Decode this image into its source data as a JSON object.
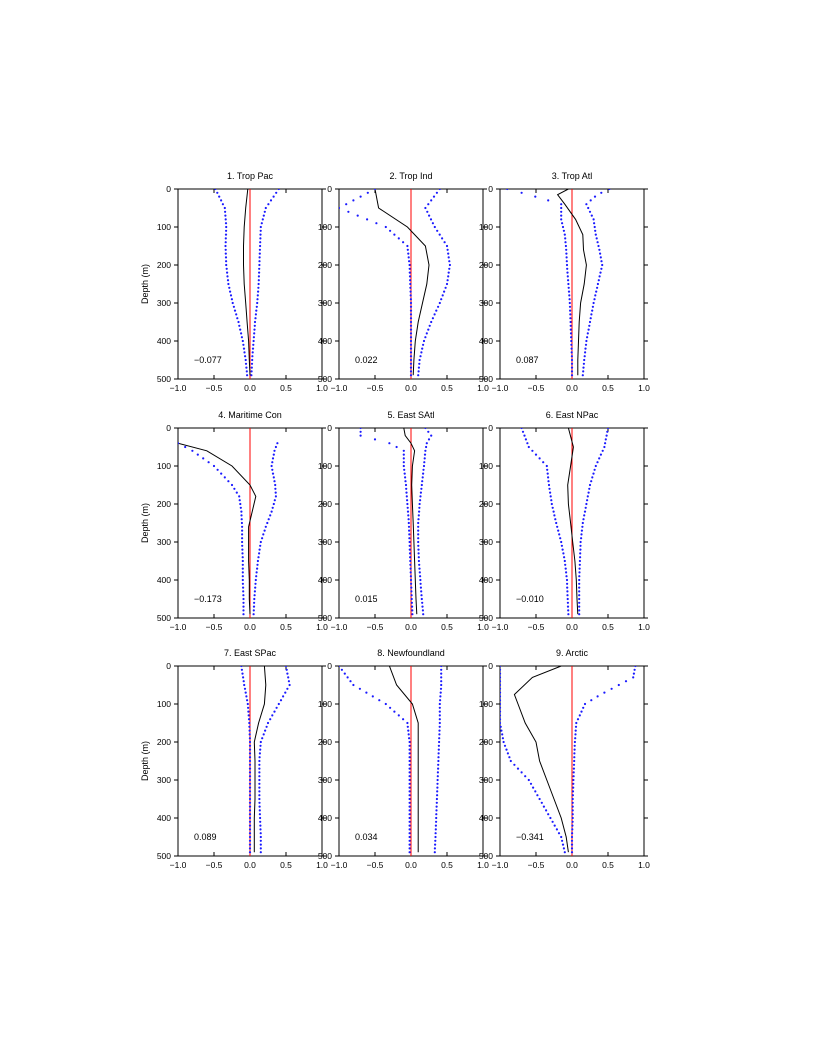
{
  "colors": {
    "mean": "#000000",
    "spread": "#1a1aff",
    "zero": "#ff0000",
    "axis": "#000000"
  },
  "axes": {
    "xlim": [
      -1.0,
      1.0
    ],
    "ylim": [
      0,
      500
    ],
    "xticks": [
      -1.0,
      -0.5,
      0.0,
      0.5,
      1.0
    ],
    "xtick_labels": [
      "−1.0",
      "−0.5",
      "0.0",
      "0.5",
      "1.0"
    ],
    "yticks": [
      0,
      100,
      200,
      300,
      400,
      500
    ],
    "ytick_labels": [
      "0",
      "100",
      "200",
      "300",
      "400",
      "500"
    ],
    "ylabel": "Depth (m)"
  },
  "chart_data": [
    {
      "type": "line",
      "title": "1. Trop Pac",
      "annotation": "−0.077",
      "depth": [
        0,
        50,
        100,
        150,
        200,
        250,
        300,
        350,
        400,
        450,
        490
      ],
      "series": [
        {
          "name": "mean",
          "style": "solid",
          "values": [
            -0.03,
            -0.06,
            -0.08,
            -0.09,
            -0.09,
            -0.08,
            -0.06,
            -0.04,
            -0.02,
            -0.01,
            0.0
          ]
        },
        {
          "name": "upper",
          "style": "dotted",
          "values": [
            0.4,
            0.22,
            0.15,
            0.14,
            0.13,
            0.12,
            0.1,
            0.07,
            0.05,
            0.03,
            0.02
          ]
        },
        {
          "name": "lower",
          "style": "dotted",
          "values": [
            -0.48,
            -0.35,
            -0.33,
            -0.34,
            -0.33,
            -0.3,
            -0.24,
            -0.16,
            -0.1,
            -0.06,
            -0.04
          ]
        }
      ]
    },
    {
      "type": "line",
      "title": "2. Trop Ind",
      "annotation": "0.022",
      "depth": [
        0,
        50,
        100,
        150,
        200,
        250,
        300,
        350,
        400,
        450,
        490
      ],
      "series": [
        {
          "name": "mean",
          "style": "solid",
          "values": [
            -0.5,
            -0.45,
            -0.05,
            0.2,
            0.25,
            0.22,
            0.16,
            0.1,
            0.06,
            0.04,
            0.03
          ]
        },
        {
          "name": "upper",
          "style": "dotted",
          "values": [
            0.4,
            0.2,
            0.33,
            0.5,
            0.54,
            0.5,
            0.4,
            0.28,
            0.18,
            0.12,
            0.1
          ]
        },
        {
          "name": "lower",
          "style": "dotted",
          "values": [
            -0.5,
            -1.0,
            -0.35,
            -0.05,
            -0.02,
            -0.01,
            0.0,
            0.0,
            0.0,
            0.0,
            0.0
          ]
        }
      ]
    },
    {
      "type": "line",
      "title": "3. Trop Atl",
      "annotation": "0.087",
      "depth": [
        0,
        15,
        40,
        80,
        120,
        160,
        200,
        250,
        300,
        350,
        400,
        450,
        490
      ],
      "series": [
        {
          "name": "mean",
          "style": "solid",
          "values": [
            -0.05,
            -0.2,
            -0.1,
            0.05,
            0.15,
            0.16,
            0.2,
            0.17,
            0.12,
            0.1,
            0.09,
            0.08,
            0.08
          ]
        },
        {
          "name": "upper",
          "style": "dotted",
          "values": [
            0.52,
            0.35,
            0.2,
            0.3,
            0.33,
            0.38,
            0.42,
            0.36,
            0.3,
            0.25,
            0.2,
            0.17,
            0.15
          ]
        },
        {
          "name": "lower",
          "style": "dotted",
          "values": [
            -0.9,
            -0.6,
            -0.15,
            -0.15,
            -0.1,
            -0.08,
            -0.07,
            -0.05,
            -0.03,
            -0.02,
            -0.01,
            0.0,
            0.0
          ]
        }
      ]
    },
    {
      "type": "line",
      "title": "4. Maritime Con",
      "annotation": "−0.173",
      "depth": [
        40,
        60,
        100,
        150,
        180,
        220,
        260,
        300,
        350,
        400,
        450,
        490
      ],
      "series": [
        {
          "name": "mean",
          "style": "solid",
          "values": [
            -1.0,
            -0.6,
            -0.25,
            0.0,
            0.08,
            0.03,
            -0.02,
            -0.02,
            -0.02,
            -0.01,
            -0.01,
            0.0
          ]
        },
        {
          "name": "upper",
          "style": "dotted",
          "values": [
            0.38,
            0.34,
            0.3,
            0.35,
            0.36,
            0.3,
            0.22,
            0.15,
            0.11,
            0.08,
            0.06,
            0.05
          ]
        },
        {
          "name": "lower",
          "style": "dotted",
          "values": [
            -1.0,
            -0.8,
            -0.5,
            -0.25,
            -0.15,
            -0.12,
            -0.11,
            -0.11,
            -0.1,
            -0.1,
            -0.09,
            -0.09
          ]
        }
      ]
    },
    {
      "type": "line",
      "title": "5. East SAtl",
      "annotation": "0.015",
      "depth": [
        0,
        20,
        40,
        60,
        100,
        150,
        200,
        250,
        300,
        350,
        400,
        450,
        490
      ],
      "series": [
        {
          "name": "mean",
          "style": "solid",
          "values": [
            -0.1,
            -0.08,
            0.0,
            0.05,
            0.02,
            0.01,
            0.02,
            0.03,
            0.04,
            0.05,
            0.06,
            0.07,
            0.08
          ]
        },
        {
          "name": "upper",
          "style": "dotted",
          "values": [
            0.2,
            0.28,
            0.22,
            0.2,
            0.18,
            0.15,
            0.12,
            0.1,
            0.1,
            0.11,
            0.13,
            0.15,
            0.17
          ]
        },
        {
          "name": "lower",
          "style": "dotted",
          "values": [
            -0.7,
            -0.7,
            -0.3,
            -0.1,
            -0.1,
            -0.07,
            -0.05,
            -0.03,
            -0.02,
            -0.01,
            0.0,
            0.01,
            0.02
          ]
        }
      ]
    },
    {
      "type": "line",
      "title": "6. East NPac",
      "annotation": "−0.010",
      "depth": [
        0,
        50,
        100,
        150,
        200,
        250,
        300,
        350,
        400,
        450,
        490
      ],
      "series": [
        {
          "name": "mean",
          "style": "solid",
          "values": [
            -0.05,
            0.02,
            -0.02,
            -0.06,
            -0.05,
            -0.02,
            0.01,
            0.04,
            0.06,
            0.07,
            0.08
          ]
        },
        {
          "name": "upper",
          "style": "dotted",
          "values": [
            0.5,
            0.45,
            0.33,
            0.25,
            0.2,
            0.15,
            0.12,
            0.11,
            0.1,
            0.1,
            0.1
          ]
        },
        {
          "name": "lower",
          "style": "dotted",
          "values": [
            -0.7,
            -0.6,
            -0.35,
            -0.32,
            -0.28,
            -0.22,
            -0.15,
            -0.1,
            -0.07,
            -0.06,
            -0.05
          ]
        }
      ]
    },
    {
      "type": "line",
      "title": "7. East SPac",
      "annotation": "0.089",
      "depth": [
        0,
        50,
        100,
        150,
        200,
        250,
        300,
        350,
        400,
        450,
        490
      ],
      "series": [
        {
          "name": "mean",
          "style": "solid",
          "values": [
            0.2,
            0.22,
            0.2,
            0.12,
            0.06,
            0.07,
            0.07,
            0.07,
            0.06,
            0.06,
            0.06
          ]
        },
        {
          "name": "upper",
          "style": "dotted",
          "values": [
            0.5,
            0.55,
            0.4,
            0.25,
            0.15,
            0.13,
            0.13,
            0.13,
            0.14,
            0.15,
            0.15
          ]
        },
        {
          "name": "lower",
          "style": "dotted",
          "values": [
            -0.12,
            -0.08,
            -0.03,
            -0.01,
            0.0,
            0.0,
            0.0,
            0.0,
            0.0,
            0.0,
            0.0
          ]
        }
      ]
    },
    {
      "type": "line",
      "title": "8. Newfoundland",
      "annotation": "0.034",
      "depth": [
        0,
        50,
        100,
        150,
        200,
        250,
        300,
        350,
        400,
        450,
        490
      ],
      "series": [
        {
          "name": "mean",
          "style": "solid",
          "values": [
            -0.3,
            -0.2,
            0.02,
            0.1,
            0.1,
            0.1,
            0.1,
            0.1,
            0.1,
            0.1,
            0.1
          ]
        },
        {
          "name": "upper",
          "style": "dotted",
          "values": [
            0.42,
            0.42,
            0.4,
            0.4,
            0.39,
            0.38,
            0.37,
            0.36,
            0.35,
            0.34,
            0.33
          ]
        },
        {
          "name": "lower",
          "style": "dotted",
          "values": [
            -1.0,
            -0.8,
            -0.35,
            -0.05,
            -0.02,
            -0.02,
            -0.02,
            -0.02,
            -0.02,
            -0.02,
            -0.02
          ]
        }
      ]
    },
    {
      "type": "line",
      "title": "9. Arctic",
      "annotation": "−0.341",
      "depth": [
        0,
        30,
        75,
        100,
        150,
        200,
        250,
        300,
        350,
        400,
        450,
        490
      ],
      "series": [
        {
          "name": "mean",
          "style": "solid",
          "values": [
            -0.15,
            -0.55,
            -0.8,
            -0.75,
            -0.65,
            -0.5,
            -0.45,
            -0.35,
            -0.25,
            -0.15,
            -0.08,
            -0.05
          ]
        },
        {
          "name": "upper",
          "style": "dotted",
          "values": [
            0.88,
            0.85,
            0.4,
            0.18,
            0.06,
            0.04,
            0.03,
            0.02,
            0.01,
            0.01,
            0.0,
            0.0
          ]
        },
        {
          "name": "lower",
          "style": "dotted",
          "values": [
            -1.0,
            -1.0,
            -1.0,
            -1.0,
            -1.0,
            -0.95,
            -0.85,
            -0.6,
            -0.45,
            -0.3,
            -0.15,
            -0.1
          ]
        }
      ]
    }
  ]
}
